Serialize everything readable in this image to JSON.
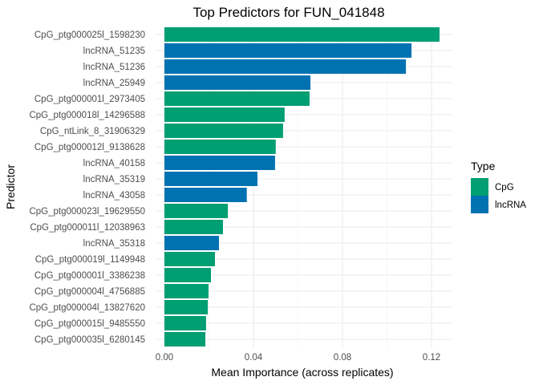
{
  "chart_data": {
    "type": "bar",
    "orientation": "horizontal",
    "title": "Top Predictors for FUN_041848",
    "xlabel": "Mean Importance (across replicates)",
    "ylabel": "Predictor",
    "xlim": [
      0,
      0.13
    ],
    "xticks": [
      0,
      0.04,
      0.08,
      0.12
    ],
    "xtick_labels": [
      "0.00",
      "0.04",
      "0.08",
      "0.12"
    ],
    "grid": true,
    "legend": {
      "title": "Type",
      "placement": "right",
      "entries": [
        {
          "label": "CpG",
          "color": "#009E73"
        },
        {
          "label": "lncRNA",
          "color": "#0072B2"
        }
      ]
    },
    "categories": [
      "CpG_ptg000025l_1598230",
      "lncRNA_51235",
      "lncRNA_51236",
      "lncRNA_25949",
      "CpG_ptg000001l_2973405",
      "CpG_ptg000018l_14296588",
      "CpG_ntLink_8_31906329",
      "CpG_ptg000012l_9138628",
      "lncRNA_40158",
      "lncRNA_35319",
      "lncRNA_43058",
      "CpG_ptg000023l_19629550",
      "CpG_ptg000011l_12038963",
      "lncRNA_35318",
      "CpG_ptg000019l_1149948",
      "CpG_ptg000001l_3386238",
      "CpG_ptg000004l_4756885",
      "CpG_ptg000004l_13827620",
      "CpG_ptg000015l_9485550",
      "CpG_ptg000035l_6280145"
    ],
    "types": [
      "CpG",
      "lncRNA",
      "lncRNA",
      "lncRNA",
      "CpG",
      "CpG",
      "CpG",
      "CpG",
      "lncRNA",
      "lncRNA",
      "lncRNA",
      "CpG",
      "CpG",
      "lncRNA",
      "CpG",
      "CpG",
      "CpG",
      "CpG",
      "CpG",
      "CpG"
    ],
    "values": [
      0.1236,
      0.111,
      0.1085,
      0.0656,
      0.0652,
      0.054,
      0.0533,
      0.05,
      0.0497,
      0.0418,
      0.037,
      0.0285,
      0.0263,
      0.0245,
      0.0227,
      0.0209,
      0.0198,
      0.0195,
      0.0187,
      0.0184
    ]
  }
}
